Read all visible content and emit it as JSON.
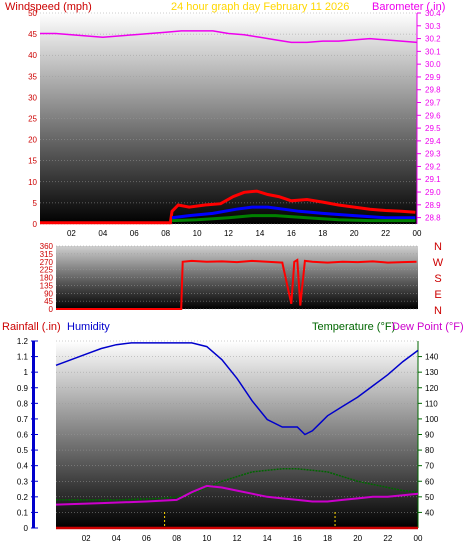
{
  "colors": {
    "windspeed": "#ff0000",
    "wind_avg": "#0000ff",
    "wind_low": "#008000",
    "barometer": "#ee00ee",
    "direction": "#ff0000",
    "rainfall": "#cc0000",
    "humidity": "#0000cc",
    "temperature": "#006600",
    "dew_point": "#cc00cc",
    "title": "#ffd700"
  },
  "header": {
    "windspeed_label": "Windspeed (mph)",
    "title": "24 hour graph day   February 11 2026",
    "barometer_label": "Barometer (.in)",
    "rainfall_label": "Rainfall (.in)",
    "humidity_label": "Humidity",
    "temperature_label": "Temperature (°F)",
    "dewpoint_label": "Dew Point (°F)"
  },
  "x_ticks": [
    "02",
    "04",
    "06",
    "08",
    "10",
    "12",
    "14",
    "16",
    "18",
    "20",
    "22",
    "00"
  ],
  "compass_labels": [
    "N",
    "W",
    "S",
    "E",
    "N"
  ],
  "chart_data": [
    {
      "type": "line",
      "title": "24 hour graph day   February 11 2026",
      "xlabel": "",
      "x_range": [
        0,
        24
      ],
      "y_left_label": "Windspeed (mph)",
      "y_left_range": [
        0,
        50
      ],
      "y_left_ticks": [
        0,
        5,
        10,
        15,
        20,
        25,
        30,
        35,
        40,
        45,
        50
      ],
      "y_right_label": "Barometer (.in)",
      "y_right_range": [
        28.75,
        30.4
      ],
      "y_right_ticks": [
        28.8,
        28.9,
        29.0,
        29.1,
        29.2,
        29.3,
        29.4,
        29.5,
        29.6,
        29.7,
        29.8,
        29.9,
        30.0,
        30.1,
        30.2,
        30.3,
        30.4
      ],
      "series": [
        {
          "name": "Windspeed (mph)",
          "color": "#ff0000",
          "values": [
            [
              0,
              0.3
            ],
            [
              8.3,
              0.3
            ],
            [
              8.4,
              3
            ],
            [
              8.8,
              4.5
            ],
            [
              9.5,
              4.0
            ],
            [
              10.5,
              4.5
            ],
            [
              11.5,
              4.8
            ],
            [
              12.3,
              6.5
            ],
            [
              13.0,
              7.5
            ],
            [
              13.8,
              7.8
            ],
            [
              14.5,
              7.0
            ],
            [
              15.2,
              6.5
            ],
            [
              16.0,
              5.5
            ],
            [
              17.0,
              5.8
            ],
            [
              18.0,
              5.2
            ],
            [
              19.0,
              4.5
            ],
            [
              20.0,
              4.0
            ],
            [
              21.0,
              3.5
            ],
            [
              22.0,
              3.2
            ],
            [
              23.0,
              3.0
            ],
            [
              23.9,
              2.8
            ]
          ]
        },
        {
          "name": "",
          "color": "#0000ff",
          "values": [
            [
              8.4,
              1.5
            ],
            [
              9.5,
              2.0
            ],
            [
              11.0,
              2.5
            ],
            [
              12.5,
              3.5
            ],
            [
              13.5,
              4.0
            ],
            [
              14.5,
              4.0
            ],
            [
              15.5,
              3.5
            ],
            [
              16.5,
              3.0
            ],
            [
              18.0,
              2.5
            ],
            [
              20.0,
              2.0
            ],
            [
              22.0,
              1.5
            ],
            [
              23.9,
              1.5
            ]
          ]
        },
        {
          "name": "",
          "color": "#008000",
          "values": [
            [
              8.4,
              0.8
            ],
            [
              10.0,
              1.0
            ],
            [
              12.0,
              1.5
            ],
            [
              13.5,
              2.0
            ],
            [
              15.0,
              2.0
            ],
            [
              17.0,
              1.5
            ],
            [
              19.0,
              1.0
            ],
            [
              21.0,
              0.8
            ],
            [
              23.9,
              0.8
            ]
          ]
        },
        {
          "name": "Barometer (.in)",
          "color": "#ee00ee",
          "axis": "right",
          "values": [
            [
              0,
              30.24
            ],
            [
              1,
              30.24
            ],
            [
              2,
              30.23
            ],
            [
              3,
              30.22
            ],
            [
              4,
              30.21
            ],
            [
              5,
              30.22
            ],
            [
              6,
              30.23
            ],
            [
              7,
              30.24
            ],
            [
              8,
              30.25
            ],
            [
              9,
              30.26
            ],
            [
              10,
              30.26
            ],
            [
              11,
              30.26
            ],
            [
              12,
              30.24
            ],
            [
              13,
              30.23
            ],
            [
              14,
              30.21
            ],
            [
              15,
              30.19
            ],
            [
              16,
              30.17
            ],
            [
              17,
              30.17
            ],
            [
              18,
              30.18
            ],
            [
              19,
              30.18
            ],
            [
              20,
              30.19
            ],
            [
              21,
              30.2
            ],
            [
              22,
              30.19
            ],
            [
              23,
              30.18
            ],
            [
              24,
              30.17
            ]
          ]
        }
      ]
    },
    {
      "type": "line",
      "x_range": [
        0,
        24
      ],
      "ylabel": "Wind direction",
      "y_range": [
        0,
        360
      ],
      "y_ticks": [
        0,
        45,
        90,
        135,
        180,
        225,
        270,
        315,
        360
      ],
      "y_tick_labels": [
        "0",
        "45",
        "90",
        "135",
        "180",
        "225",
        "270",
        "315",
        "360"
      ],
      "series": [
        {
          "name": "Wind direction",
          "color": "#ff0000",
          "values": [
            [
              0,
              0
            ],
            [
              8.3,
              0
            ],
            [
              8.4,
              270
            ],
            [
              9,
              275
            ],
            [
              10,
              270
            ],
            [
              11,
              272
            ],
            [
              12,
              268
            ],
            [
              13,
              275
            ],
            [
              14,
              270
            ],
            [
              15,
              265
            ],
            [
              15.6,
              30
            ],
            [
              15.8,
              270
            ],
            [
              16,
              280
            ],
            [
              16.2,
              20
            ],
            [
              16.5,
              275
            ],
            [
              17,
              270
            ],
            [
              18,
              265
            ],
            [
              19,
              270
            ],
            [
              20,
              268
            ],
            [
              21,
              272
            ],
            [
              22,
              265
            ],
            [
              23,
              268
            ],
            [
              23.9,
              270
            ]
          ]
        }
      ]
    },
    {
      "type": "line",
      "x_range": [
        0,
        24
      ],
      "y_left_label": "Rainfall (.in)",
      "y_left_range": [
        0,
        1.2
      ],
      "y_left_ticks": [
        0,
        0.1,
        0.2,
        0.3,
        0.4,
        0.5,
        0.6,
        0.7,
        0.8,
        0.9,
        1,
        1.1,
        1.2
      ],
      "y_left_tick_labels": [
        "0",
        "0.1",
        "0.2",
        "0.3",
        "0.4",
        "0.5",
        "0.6",
        "0.7",
        "0.8",
        "0.9",
        "1",
        "1.1",
        "1.2"
      ],
      "y_right_label": "Temperature (°F)",
      "y_right_range": [
        30,
        150
      ],
      "y_right_ticks": [
        40,
        50,
        60,
        70,
        80,
        90,
        100,
        110,
        120,
        130,
        140
      ],
      "series": [
        {
          "name": "Humidity",
          "color": "#0000cc",
          "values": [
            [
              0,
              87
            ],
            [
              1,
              90
            ],
            [
              2,
              93
            ],
            [
              3,
              96
            ],
            [
              4,
              98
            ],
            [
              5,
              99
            ],
            [
              6,
              99
            ],
            [
              7,
              99
            ],
            [
              8,
              99
            ],
            [
              9,
              99
            ],
            [
              10,
              97
            ],
            [
              11,
              90
            ],
            [
              12,
              80
            ],
            [
              13,
              68
            ],
            [
              14,
              58
            ],
            [
              15,
              54
            ],
            [
              16,
              54
            ],
            [
              16.5,
              50
            ],
            [
              17,
              52
            ],
            [
              17.5,
              56
            ],
            [
              18,
              60
            ],
            [
              19,
              65
            ],
            [
              20,
              70
            ],
            [
              21,
              76
            ],
            [
              22,
              82
            ],
            [
              23,
              89
            ],
            [
              24,
              95
            ]
          ]
        },
        {
          "name": "Temperature (°F)",
          "color": "#006600",
          "axis": "right",
          "values": [
            [
              0,
              48
            ],
            [
              4,
              48
            ],
            [
              7,
              49
            ],
            [
              8,
              50
            ],
            [
              9,
              52
            ],
            [
              10,
              56
            ],
            [
              11,
              60
            ],
            [
              12,
              63
            ],
            [
              13,
              66
            ],
            [
              14,
              67
            ],
            [
              15,
              68
            ],
            [
              16,
              68
            ],
            [
              17,
              67
            ],
            [
              18,
              66
            ],
            [
              19,
              63
            ],
            [
              20,
              60
            ],
            [
              21,
              58
            ],
            [
              22,
              56
            ],
            [
              23,
              54
            ],
            [
              24,
              53
            ]
          ]
        },
        {
          "name": "Dew Point (°F)",
          "color": "#cc00cc",
          "axis": "right",
          "values": [
            [
              0,
              45
            ],
            [
              3,
              46
            ],
            [
              6,
              47
            ],
            [
              8,
              48
            ],
            [
              9,
              53
            ],
            [
              10,
              57
            ],
            [
              11,
              56
            ],
            [
              12,
              54
            ],
            [
              13,
              52
            ],
            [
              14,
              50
            ],
            [
              15,
              49
            ],
            [
              16,
              48
            ],
            [
              17,
              47
            ],
            [
              18,
              47
            ],
            [
              19,
              48
            ],
            [
              20,
              49
            ],
            [
              21,
              50
            ],
            [
              22,
              50
            ],
            [
              23,
              51
            ],
            [
              24,
              52
            ]
          ]
        },
        {
          "name": "Rainfall (.in)",
          "color": "#cc0000",
          "values": [
            [
              0,
              0
            ],
            [
              24,
              0
            ]
          ]
        }
      ],
      "markers_at_hours": [
        7.2,
        18.5
      ]
    }
  ]
}
